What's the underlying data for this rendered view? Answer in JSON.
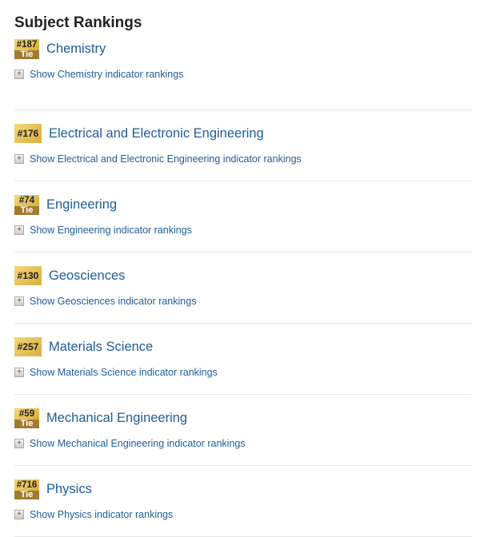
{
  "heading": "Subject Rankings",
  "subjects": [
    {
      "rank": "#187",
      "tie": "Tie",
      "name": "Chemistry",
      "link": "Show Chemistry indicator rankings"
    },
    {
      "rank": "#176",
      "tie": "",
      "name": "Electrical and Electronic Engineering",
      "link": "Show Electrical and Electronic Engineering indicator rankings"
    },
    {
      "rank": "#74",
      "tie": "Tie",
      "name": "Engineering",
      "link": "Show Engineering indicator rankings"
    },
    {
      "rank": "#130",
      "tie": "",
      "name": "Geosciences",
      "link": "Show Geosciences indicator rankings"
    },
    {
      "rank": "#257",
      "tie": "",
      "name": "Materials Science",
      "link": "Show Materials Science indicator rankings"
    },
    {
      "rank": "#59",
      "tie": "Tie",
      "name": "Mechanical Engineering",
      "link": "Show Mechanical Engineering indicator rankings"
    },
    {
      "rank": "#716",
      "tie": "Tie",
      "name": "Physics",
      "link": "Show Physics indicator rankings"
    }
  ]
}
